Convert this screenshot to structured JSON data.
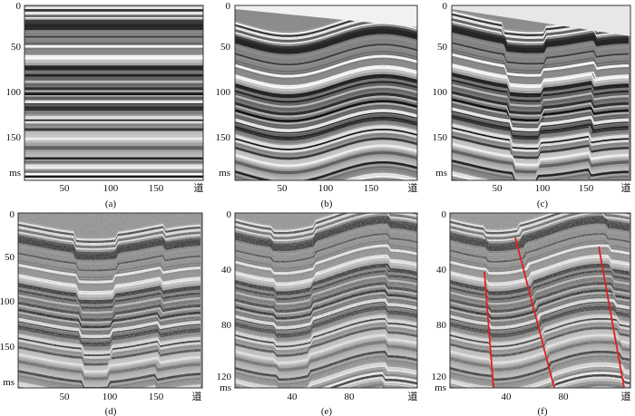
{
  "panels": [
    {
      "caption": "(a)",
      "y_ticks": [
        "0",
        "50",
        "100",
        "150",
        "ms"
      ],
      "x_ticks": [
        "50",
        "100",
        "150",
        "道"
      ]
    },
    {
      "caption": "(b)",
      "y_ticks": [
        "0",
        "50",
        "100",
        "150",
        "ms"
      ],
      "x_ticks": [
        "50",
        "100",
        "150",
        "道"
      ]
    },
    {
      "caption": "(c)",
      "y_ticks": [
        "0",
        "50",
        "100",
        "150",
        "ms"
      ],
      "x_ticks": [
        "50",
        "100",
        "150",
        "道"
      ]
    },
    {
      "caption": "(d)",
      "y_ticks": [
        "0",
        "50",
        "100",
        "150",
        "ms"
      ],
      "x_ticks": [
        "50",
        "100",
        "150",
        "道"
      ]
    },
    {
      "caption": "(e)",
      "y_ticks": [
        "0",
        "40",
        "80",
        "120",
        "ms"
      ],
      "x_ticks": [
        "40",
        "80",
        "道"
      ]
    },
    {
      "caption": "(f)",
      "y_ticks": [
        "0",
        "40",
        "80",
        "120",
        "ms"
      ],
      "x_ticks": [
        "40",
        "80",
        "道"
      ]
    }
  ],
  "colors": {
    "fault_line": "#e02020",
    "background": "#ffffff",
    "trace_dark": "#1a1a1a",
    "trace_light": "#f2f2f2"
  }
}
